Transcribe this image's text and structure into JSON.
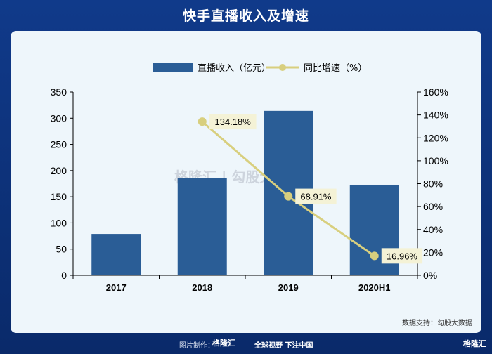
{
  "header": {
    "title": "快手直播收入及增速"
  },
  "chart_data": {
    "type": "bar+line",
    "categories": [
      "2017",
      "2018",
      "2019",
      "2020H1"
    ],
    "series": [
      {
        "name": "直播收入（亿元）",
        "type": "bar",
        "axis": "left",
        "values": [
          79,
          186,
          314,
          173
        ]
      },
      {
        "name": "同比增速（%）",
        "type": "line",
        "axis": "right",
        "values": [
          null,
          134.18,
          68.91,
          16.96
        ],
        "labels": [
          null,
          "134.18%",
          "68.91%",
          "16.96%"
        ]
      }
    ],
    "left_axis": {
      "ylim": [
        0,
        350
      ],
      "ticks": [
        "0",
        "50",
        "100",
        "150",
        "200",
        "250",
        "300",
        "350"
      ]
    },
    "right_axis": {
      "ylim": [
        0,
        160
      ],
      "ticks": [
        "0%",
        "20%",
        "40%",
        "60%",
        "80%",
        "100%",
        "120%",
        "140%",
        "160%"
      ]
    },
    "legend_position": "top-center",
    "grid": false,
    "colors": {
      "bar": "#2a5d96",
      "line": "#d8cf7e",
      "label_bg": "#f4f2d6"
    }
  },
  "source": "数据支持：勾股大数据",
  "watermark": "格隆汇 | 勾股大数据",
  "footer": {
    "made_by": "图片制作：",
    "logo": "格隆汇",
    "slogan": "全球视野 下注中国",
    "corner_logo": "格隆汇"
  }
}
